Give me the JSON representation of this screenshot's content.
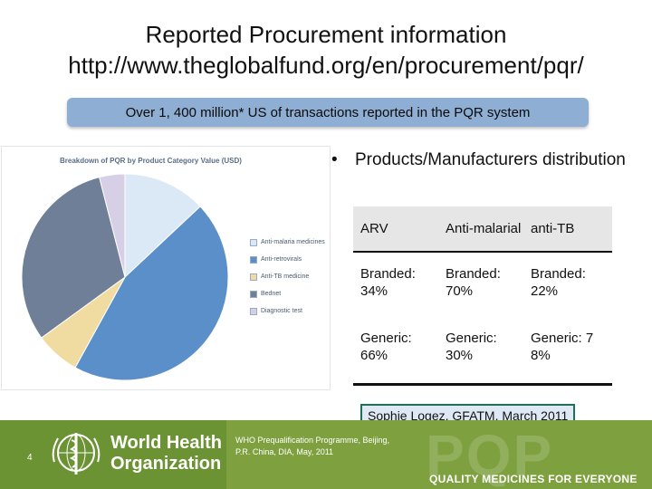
{
  "slide": {
    "title_line1": "Reported Procurement information",
    "title_line2": "http://www.theglobalfund.org/en/procurement/pqr/",
    "banner": "Over 1, 400 million* US of transactions reported in the PQR system",
    "bullet": "Products/Manufacturers distribution",
    "credit": "Sophie Logez, GFATM, March 2011",
    "slide_number": "4"
  },
  "chart_data": {
    "type": "pie",
    "title": "Breakdown of PQR by Product Category Value (USD)",
    "legend_position": "right",
    "slices": [
      {
        "label": "Anti-malaria medicines",
        "value": 13,
        "color": "#dbe8f6"
      },
      {
        "label": "Anti-retrovirals",
        "value": 45,
        "color": "#5b8fc9"
      },
      {
        "label": "Anti-TB medicine",
        "value": 7,
        "color": "#f0dca0"
      },
      {
        "label": "Bednet",
        "value": 31,
        "color": "#6f7f97"
      },
      {
        "label": "Diagnostic test",
        "value": 4,
        "color": "#d6cfe6"
      }
    ]
  },
  "table": {
    "headers": [
      "ARV",
      "Anti-malarial",
      "anti-TB"
    ],
    "rows": [
      [
        "Branded: 34%",
        "Branded: 70%",
        "Branded: 22%"
      ],
      [
        "Generic: 66%",
        "Generic: 30%",
        "Generic: 7 8%"
      ]
    ]
  },
  "footer": {
    "org_line1": "World Health",
    "org_line2": "Organization",
    "info_line1": "WHO Prequalification Programme, Beijing,",
    "info_line2": "P.R. China, DIA, May, 2011",
    "watermark": "PQP",
    "tagline": "QUALITY MEDICINES FOR EVERYONE"
  },
  "colors": {
    "banner": "#8eaed3",
    "footer_green": "#7ea03e",
    "table_header": "#e6e6e6"
  }
}
